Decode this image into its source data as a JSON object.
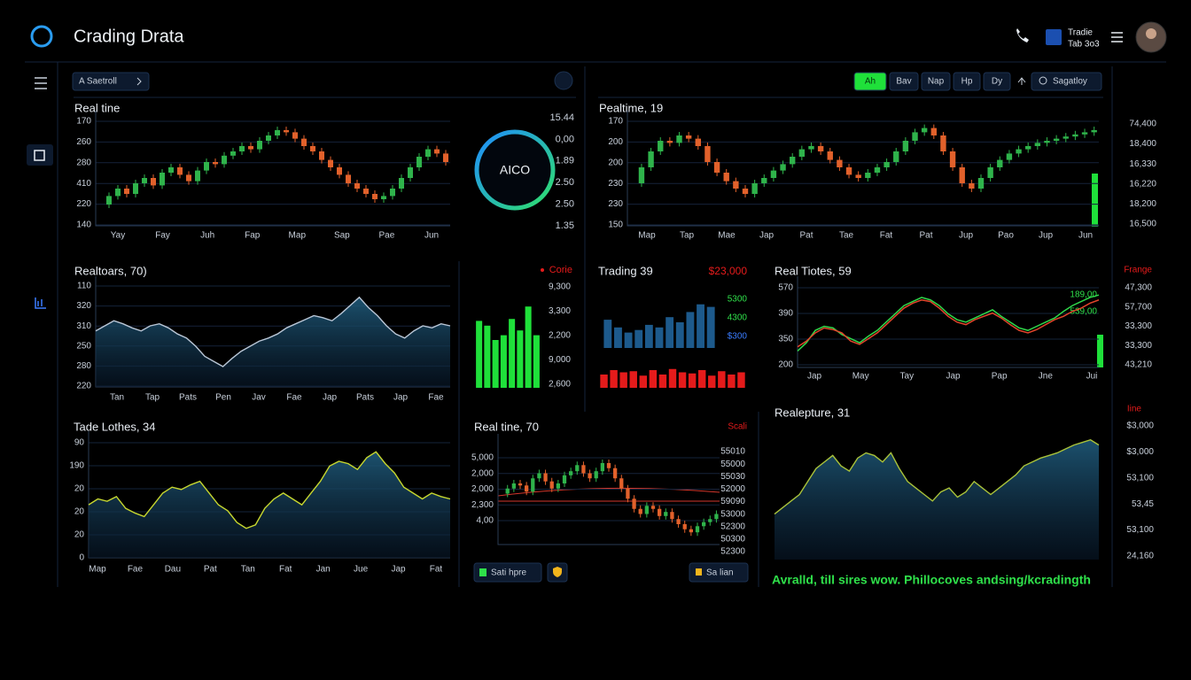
{
  "header": {
    "title": "Crading Drata",
    "account": "Tradie",
    "account_sub": "Tab 3o3"
  },
  "toolbar": {
    "filter": "A Saetroll",
    "range_buttons": [
      "Ah",
      "Bav",
      "Nap",
      "Hp",
      "Dy"
    ],
    "search": "Sagatloy"
  },
  "ring": {
    "label": "AICO",
    "values": [
      "15.44",
      "0,00",
      "1.89",
      "2.50",
      "2.50",
      "1.35"
    ]
  },
  "bottom_buttons": {
    "left": "Sati hpre",
    "right": "Sa lian"
  },
  "footer": "Avralld, till sires wow. Phillocoves andsing/kcradingth",
  "chart_data": [
    {
      "type": "candlestick",
      "title": "Real tine",
      "up_color": "#2fb34b",
      "down_color": "#e2612b",
      "ylim": [
        0,
        100
      ],
      "y_labels": [
        "170",
        "260",
        "280",
        "410",
        "220",
        "140"
      ],
      "x_labels": [
        "Yay",
        "Fay",
        "Juh",
        "Fap",
        "Map",
        "Sap",
        "Pae",
        "Jun"
      ],
      "values": [
        20,
        28,
        35,
        30,
        40,
        45,
        38,
        50,
        55,
        48,
        42,
        52,
        60,
        58,
        66,
        70,
        75,
        72,
        80,
        85,
        90,
        88,
        82,
        75,
        70,
        62,
        55,
        48,
        40,
        35,
        30,
        25,
        28,
        35,
        45,
        55,
        65,
        72,
        68,
        60
      ]
    },
    {
      "type": "candlestick",
      "title": "Pealtime, 19",
      "up_color": "#2fb34b",
      "down_color": "#e2612b",
      "ylim": [
        0,
        100
      ],
      "y_labels": [
        "170",
        "200",
        "200",
        "230",
        "230",
        "150"
      ],
      "x_labels": [
        "Map",
        "Tap",
        "Mae",
        "Jap",
        "Pat",
        "Tae",
        "Fat",
        "Pat",
        "Jup",
        "Pao",
        "Jup",
        "Jun"
      ],
      "right_labels": [
        "74,400",
        "18,400",
        "16,330",
        "16,220",
        "18,200",
        "16,500"
      ],
      "values": [
        40,
        55,
        70,
        80,
        78,
        85,
        82,
        75,
        60,
        50,
        42,
        35,
        30,
        40,
        45,
        52,
        58,
        65,
        72,
        75,
        70,
        62,
        55,
        48,
        45,
        50,
        55,
        60,
        70,
        80,
        88,
        92,
        85,
        70,
        55,
        40,
        35,
        45,
        55,
        62,
        68,
        72,
        75,
        78,
        80,
        82,
        84,
        86,
        88,
        90
      ]
    },
    {
      "type": "area",
      "title": "Realtoars, 70)",
      "color": "#b9c6d6",
      "ylim": [
        0,
        100
      ],
      "y_labels": [
        "110",
        "320",
        "310",
        "250",
        "280",
        "220"
      ],
      "x_labels": [
        "Tan",
        "Tap",
        "Pats",
        "Pen",
        "Jav",
        "Fae",
        "Jap",
        "Pats",
        "Jap",
        "Fae"
      ],
      "values": [
        55,
        60,
        65,
        62,
        58,
        55,
        60,
        62,
        58,
        52,
        48,
        40,
        30,
        25,
        20,
        28,
        35,
        40,
        45,
        48,
        52,
        58,
        62,
        66,
        70,
        68,
        65,
        72,
        80,
        88,
        78,
        70,
        60,
        52,
        48,
        55,
        60,
        58,
        62,
        60
      ]
    },
    {
      "type": "bar",
      "title": "Corie",
      "color": "#1fe03a",
      "ylim": [
        0,
        100
      ],
      "right_labels": [
        "9,300",
        "3,300",
        "2,200",
        "9,000",
        "2,600"
      ],
      "values": [
        70,
        65,
        50,
        55,
        72,
        60,
        85,
        55
      ]
    },
    {
      "type": "bar",
      "title": "Trading 39",
      "headline": "$23,000",
      "ylim": [
        0,
        100
      ],
      "right_labels": [
        "5300",
        "4300",
        "$300"
      ],
      "label_colors": [
        "#2fe04a",
        "#2fe04a",
        "#3a7cff"
      ],
      "series": [
        {
          "color": "#1d5a8c",
          "values": [
            55,
            40,
            30,
            35,
            45,
            40,
            60,
            50,
            70,
            85,
            80
          ]
        },
        {
          "color": "#e51b1b",
          "values": [
            60,
            80,
            70,
            75,
            55,
            80,
            60,
            85,
            70,
            65,
            80,
            55,
            75,
            60,
            70
          ]
        }
      ]
    },
    {
      "type": "line",
      "title": "Real Tiotes, 59",
      "right_title": "Frange",
      "ylim": [
        0,
        100
      ],
      "y_labels": [
        "570",
        "390",
        "350",
        "200"
      ],
      "x_labels": [
        "Jap",
        "May",
        "Tay",
        "Jap",
        "Pap",
        "Jne",
        "Jui"
      ],
      "right_labels": [
        "47,300",
        "57,700",
        "33,300",
        "33,300",
        "43,210"
      ],
      "annotations": [
        "189,00",
        "539,00"
      ],
      "series": [
        {
          "color": "#2fd84a",
          "values": [
            20,
            30,
            45,
            50,
            48,
            40,
            35,
            30,
            38,
            45,
            55,
            65,
            75,
            80,
            85,
            82,
            75,
            65,
            58,
            55,
            60,
            65,
            70,
            62,
            55,
            48,
            45,
            50,
            55,
            60,
            68,
            75,
            80,
            85,
            88
          ]
        },
        {
          "color": "#e2452b",
          "values": [
            25,
            32,
            42,
            48,
            46,
            42,
            32,
            28,
            35,
            42,
            52,
            62,
            72,
            78,
            82,
            80,
            72,
            62,
            55,
            52,
            58,
            62,
            66,
            60,
            52,
            45,
            42,
            46,
            52,
            58,
            62,
            68,
            72,
            78,
            82
          ]
        }
      ]
    },
    {
      "type": "area",
      "title": "Tade Lothes, 34",
      "color": "#c7d72f",
      "ylim": [
        0,
        100
      ],
      "y_labels": [
        "90",
        "190",
        "20",
        "20",
        "20",
        "0"
      ],
      "x_labels": [
        "Map",
        "Fae",
        "Dau",
        "Pat",
        "Tan",
        "Fat",
        "Jan",
        "Jue",
        "Jap",
        "Fat"
      ],
      "values": [
        45,
        50,
        48,
        52,
        42,
        38,
        35,
        45,
        55,
        60,
        58,
        62,
        65,
        55,
        45,
        40,
        30,
        25,
        28,
        42,
        50,
        55,
        50,
        45,
        55,
        65,
        78,
        82,
        80,
        75,
        85,
        90,
        80,
        72,
        60,
        55,
        50,
        55,
        52,
        50
      ]
    },
    {
      "type": "candlestick",
      "title": "Real tine, 70",
      "right_title": "Scali",
      "up_color": "#2fb34b",
      "down_color": "#e2612b",
      "ylim": [
        0,
        100
      ],
      "y_labels": [
        "5,000",
        "2,000",
        "2,000",
        "2,300",
        "4,00"
      ],
      "right_labels": [
        "55010",
        "55000",
        "55030",
        "52000",
        "59090",
        "53000",
        "52300",
        "50300",
        "52300"
      ],
      "values": [
        50,
        55,
        60,
        58,
        52,
        65,
        70,
        62,
        55,
        60,
        68,
        72,
        78,
        70,
        65,
        72,
        80,
        75,
        65,
        55,
        45,
        35,
        30,
        38,
        35,
        28,
        32,
        25,
        20,
        15,
        12,
        18,
        22,
        25,
        30
      ]
    },
    {
      "type": "area",
      "title": "Realepture, 31",
      "right_title": "Iine",
      "color": "#a9c23a",
      "ylim": [
        0,
        100
      ],
      "right_labels": [
        "$3,000",
        "$3,000",
        "53,100",
        "53,45",
        "53,100",
        "24,160"
      ],
      "values": [
        35,
        40,
        45,
        50,
        60,
        70,
        75,
        80,
        72,
        68,
        78,
        82,
        80,
        75,
        82,
        70,
        60,
        55,
        50,
        45,
        52,
        55,
        48,
        52,
        60,
        55,
        50,
        55,
        60,
        65,
        72,
        75,
        78,
        80,
        82,
        85,
        88,
        90,
        92,
        88
      ]
    }
  ]
}
